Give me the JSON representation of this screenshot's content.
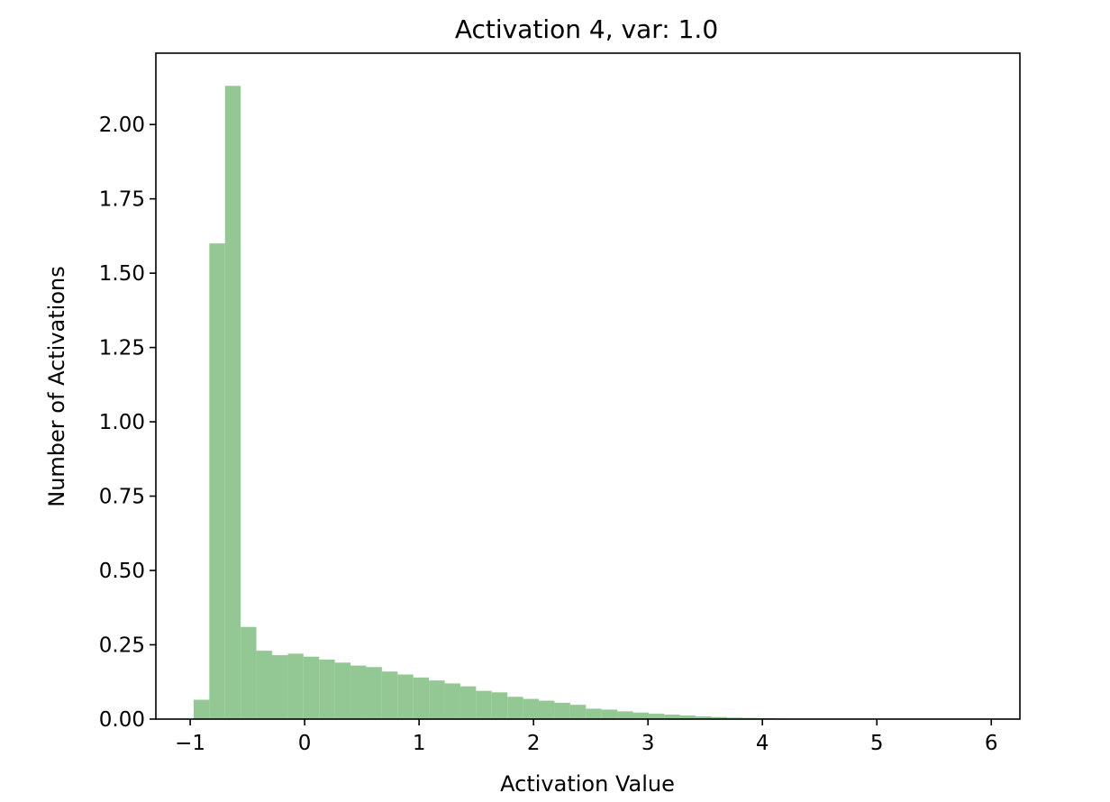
{
  "chart_data": {
    "type": "bar",
    "title": "Activation 4, var: 1.0",
    "xlabel": "Activation Value",
    "ylabel": "Number of Activations",
    "xlim": [
      -1.3,
      6.25
    ],
    "ylim": [
      0,
      2.24
    ],
    "grid": false,
    "bar_color": "#93c793",
    "x_ticks": [
      -1,
      0,
      1,
      2,
      3,
      4,
      5,
      6
    ],
    "x_tick_labels": [
      "−1",
      "0",
      "1",
      "2",
      "3",
      "4",
      "5",
      "6"
    ],
    "y_ticks": [
      0,
      0.25,
      0.5,
      0.75,
      1.0,
      1.25,
      1.5,
      1.75,
      2.0
    ],
    "y_tick_labels": [
      "0.00",
      "0.25",
      "0.50",
      "0.75",
      "1.00",
      "1.25",
      "1.50",
      "1.75",
      "2.00"
    ],
    "bins": {
      "start": -0.97,
      "width": 0.1371,
      "values": [
        0.065,
        1.6,
        2.13,
        0.31,
        0.23,
        0.215,
        0.22,
        0.21,
        0.2,
        0.19,
        0.18,
        0.175,
        0.16,
        0.15,
        0.14,
        0.13,
        0.12,
        0.11,
        0.095,
        0.09,
        0.075,
        0.068,
        0.062,
        0.055,
        0.048,
        0.035,
        0.032,
        0.026,
        0.022,
        0.018,
        0.015,
        0.012,
        0.009,
        0.007,
        0.005,
        0.004,
        0.003,
        0.002,
        0.0015,
        0.001,
        0.0008,
        0.0006,
        0.0005,
        0.0004,
        0.0003,
        0.0002,
        0.0002,
        0.0001,
        0.0001,
        0.0001
      ]
    }
  }
}
